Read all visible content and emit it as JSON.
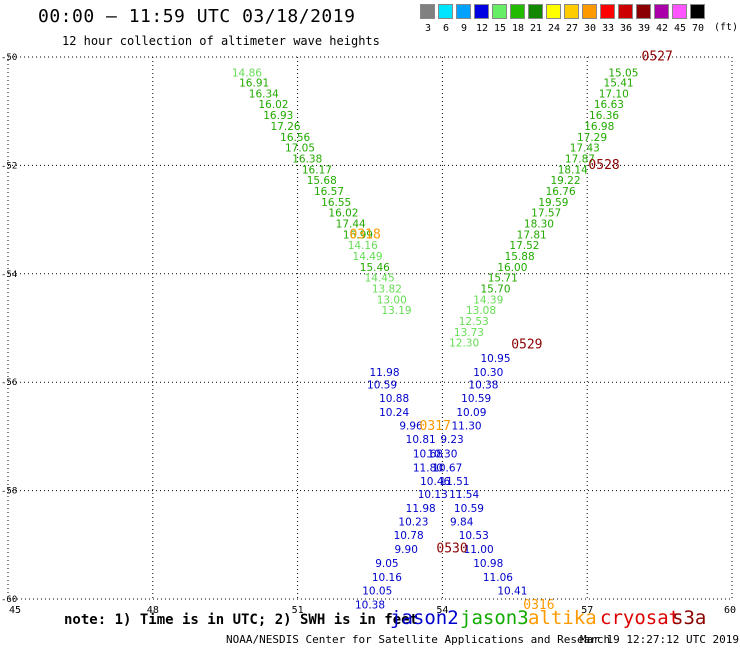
{
  "header": {
    "title": "00:00 – 11:59 UTC 03/18/2019",
    "subtitle": "12 hour collection of altimeter wave heights"
  },
  "color_scale": {
    "unit": "(ft)",
    "bins": [
      {
        "label": "3",
        "color": "#808080"
      },
      {
        "label": "6",
        "color": "#00e5ff"
      },
      {
        "label": "9",
        "color": "#00a2ff"
      },
      {
        "label": "12",
        "color": "#0000e0"
      },
      {
        "label": "15",
        "color": "#66ee66"
      },
      {
        "label": "18",
        "color": "#22bb00"
      },
      {
        "label": "21",
        "color": "#118800"
      },
      {
        "label": "24",
        "color": "#ffff00"
      },
      {
        "label": "27",
        "color": "#ffcc00"
      },
      {
        "label": "30",
        "color": "#ff9900"
      },
      {
        "label": "33",
        "color": "#ff0000"
      },
      {
        "label": "36",
        "color": "#cc0000"
      },
      {
        "label": "39",
        "color": "#8b0000"
      },
      {
        "label": "42",
        "color": "#aa00aa"
      },
      {
        "label": "45",
        "color": "#ff55ff"
      },
      {
        "label": "70",
        "color": "#000000"
      }
    ]
  },
  "chart_data": {
    "type": "scatter",
    "xlim": [
      45,
      60
    ],
    "ylim": [
      -60,
      -50
    ],
    "x_ticks": [
      "45",
      "48",
      "51",
      "54",
      "57",
      "60"
    ],
    "y_ticks": [
      "-50",
      "-52",
      "-54",
      "-56",
      "-58",
      "-60"
    ],
    "grid": true,
    "series": [
      {
        "name": "jason2",
        "color": "#0000cc",
        "points": [
          {
            "x": 52.8,
            "y": -55.83,
            "label": "11.98"
          },
          {
            "x": 52.75,
            "y": -56.06,
            "label": "10.59"
          },
          {
            "x": 53.0,
            "y": -56.31,
            "label": "10.88"
          },
          {
            "x": 53.0,
            "y": -56.57,
            "label": "10.24"
          },
          {
            "x": 53.35,
            "y": -56.82,
            "label": "9.96"
          },
          {
            "x": 53.55,
            "y": -57.07,
            "label": "10.81"
          },
          {
            "x": 53.7,
            "y": -57.33,
            "label": "10.68"
          },
          {
            "x": 53.7,
            "y": -57.59,
            "label": "11.80"
          },
          {
            "x": 53.85,
            "y": -57.84,
            "label": "10.46"
          },
          {
            "x": 53.8,
            "y": -58.08,
            "label": "10.13"
          },
          {
            "x": 53.55,
            "y": -58.34,
            "label": "11.98"
          },
          {
            "x": 53.4,
            "y": -58.59,
            "label": "10.23"
          },
          {
            "x": 53.3,
            "y": -58.84,
            "label": "10.78"
          },
          {
            "x": 53.25,
            "y": -59.1,
            "label": "9.90"
          },
          {
            "x": 52.85,
            "y": -59.35,
            "label": "9.05"
          },
          {
            "x": 52.85,
            "y": -59.61,
            "label": "10.16"
          },
          {
            "x": 52.65,
            "y": -59.86,
            "label": "10.05"
          },
          {
            "x": 52.5,
            "y": -60.12,
            "label": "10.38"
          },
          {
            "x": 55.45,
            "y": -59.86,
            "label": "10.41"
          },
          {
            "x": 55.15,
            "y": -59.61,
            "label": "11.06"
          },
          {
            "x": 54.95,
            "y": -59.35,
            "label": "10.98"
          },
          {
            "x": 54.75,
            "y": -59.1,
            "label": "11.00"
          },
          {
            "x": 54.65,
            "y": -58.84,
            "label": "10.53"
          },
          {
            "x": 54.4,
            "y": -58.59,
            "label": "9.84"
          },
          {
            "x": 54.55,
            "y": -58.34,
            "label": "10.59"
          },
          {
            "x": 54.45,
            "y": -58.08,
            "label": "11.54"
          },
          {
            "x": 54.25,
            "y": -57.84,
            "label": "11.51"
          },
          {
            "x": 54.1,
            "y": -57.59,
            "label": "10.67"
          },
          {
            "x": 54.0,
            "y": -57.33,
            "label": "10.30"
          },
          {
            "x": 54.2,
            "y": -57.07,
            "label": "9.23"
          },
          {
            "x": 54.5,
            "y": -56.82,
            "label": "11.30"
          },
          {
            "x": 54.6,
            "y": -56.57,
            "label": "10.09"
          },
          {
            "x": 54.7,
            "y": -56.31,
            "label": "10.59"
          },
          {
            "x": 54.85,
            "y": -56.06,
            "label": "10.38"
          },
          {
            "x": 54.95,
            "y": -55.83,
            "label": "10.30"
          },
          {
            "x": 55.1,
            "y": -55.57,
            "label": "10.95"
          }
        ]
      },
      {
        "name": "jason3",
        "color": "#11aa00",
        "points": [
          {
            "x": 49.95,
            "y": -50.3,
            "label": "14.86"
          },
          {
            "x": 50.1,
            "y": -50.49,
            "label": "16.91"
          },
          {
            "x": 50.3,
            "y": -50.69,
            "label": "16.34"
          },
          {
            "x": 50.5,
            "y": -50.89,
            "label": "16.02"
          },
          {
            "x": 50.6,
            "y": -51.09,
            "label": "16.93"
          },
          {
            "x": 50.75,
            "y": -51.29,
            "label": "17.26"
          },
          {
            "x": 50.95,
            "y": -51.49,
            "label": "16.56"
          },
          {
            "x": 51.05,
            "y": -51.69,
            "label": "17.05"
          },
          {
            "x": 51.2,
            "y": -51.89,
            "label": "16.38"
          },
          {
            "x": 51.4,
            "y": -52.09,
            "label": "16.17"
          },
          {
            "x": 51.5,
            "y": -52.29,
            "label": "15.68"
          },
          {
            "x": 51.65,
            "y": -52.49,
            "label": "16.57"
          },
          {
            "x": 51.8,
            "y": -52.69,
            "label": "16.55"
          },
          {
            "x": 51.95,
            "y": -52.89,
            "label": "16.02"
          },
          {
            "x": 52.1,
            "y": -53.09,
            "label": "17.44"
          },
          {
            "x": 52.25,
            "y": -53.29,
            "label": "16.99"
          },
          {
            "x": 52.35,
            "y": -53.49,
            "label": "14.16"
          },
          {
            "x": 52.45,
            "y": -53.69,
            "label": "14.49"
          },
          {
            "x": 52.6,
            "y": -53.89,
            "label": "15.46"
          },
          {
            "x": 52.7,
            "y": -54.09,
            "label": "14.45"
          },
          {
            "x": 52.85,
            "y": -54.29,
            "label": "13.82"
          },
          {
            "x": 52.95,
            "y": -54.49,
            "label": "13.00"
          },
          {
            "x": 53.05,
            "y": -54.69,
            "label": "13.19"
          },
          {
            "x": 57.75,
            "y": -50.3,
            "label": "15.05"
          },
          {
            "x": 57.65,
            "y": -50.49,
            "label": "15.41"
          },
          {
            "x": 57.55,
            "y": -50.69,
            "label": "17.10"
          },
          {
            "x": 57.45,
            "y": -50.89,
            "label": "16.63"
          },
          {
            "x": 57.35,
            "y": -51.09,
            "label": "16.36"
          },
          {
            "x": 57.25,
            "y": -51.29,
            "label": "16.98"
          },
          {
            "x": 57.1,
            "y": -51.49,
            "label": "17.29"
          },
          {
            "x": 56.95,
            "y": -51.69,
            "label": "17.43"
          },
          {
            "x": 56.85,
            "y": -51.89,
            "label": "17.87"
          },
          {
            "x": 56.7,
            "y": -52.09,
            "label": "18.14"
          },
          {
            "x": 56.55,
            "y": -52.29,
            "label": "19.22"
          },
          {
            "x": 56.45,
            "y": -52.49,
            "label": "16.76"
          },
          {
            "x": 56.3,
            "y": -52.69,
            "label": "19.59"
          },
          {
            "x": 56.15,
            "y": -52.89,
            "label": "17.57"
          },
          {
            "x": 56.0,
            "y": -53.09,
            "label": "18.30"
          },
          {
            "x": 55.85,
            "y": -53.29,
            "label": "17.81"
          },
          {
            "x": 55.7,
            "y": -53.49,
            "label": "17.52"
          },
          {
            "x": 55.6,
            "y": -53.69,
            "label": "15.88"
          },
          {
            "x": 55.45,
            "y": -53.89,
            "label": "16.00"
          },
          {
            "x": 55.25,
            "y": -54.09,
            "label": "15.71"
          },
          {
            "x": 55.1,
            "y": -54.29,
            "label": "15.70"
          },
          {
            "x": 54.95,
            "y": -54.49,
            "label": "14.39"
          },
          {
            "x": 54.8,
            "y": -54.69,
            "label": "13.08"
          },
          {
            "x": 54.65,
            "y": -54.89,
            "label": "12.53"
          },
          {
            "x": 54.55,
            "y": -55.09,
            "label": "13.73"
          },
          {
            "x": 54.45,
            "y": -55.29,
            "label": "12.30"
          }
        ]
      }
    ],
    "track_labels": [
      {
        "text": "0527",
        "x": 58.45,
        "y": -50.0,
        "color": "#8b0000"
      },
      {
        "text": "0528",
        "x": 57.35,
        "y": -52.0,
        "color": "#8b0000"
      },
      {
        "text": "0318",
        "x": 52.4,
        "y": -53.28,
        "color": "#ff9900"
      },
      {
        "text": "0529",
        "x": 55.75,
        "y": -55.31,
        "color": "#8b0000"
      },
      {
        "text": "0317",
        "x": 53.85,
        "y": -56.82,
        "color": "#ff9900"
      },
      {
        "text": "0530",
        "x": 54.2,
        "y": -59.08,
        "color": "#8b0000"
      },
      {
        "text": "0316",
        "x": 56.0,
        "y": -60.12,
        "color": "#ff9900"
      }
    ]
  },
  "footer": {
    "note": "note: 1) Time is in UTC; 2) SWH is in feet",
    "satellites": [
      {
        "name": "jason2",
        "color": "#0000cc"
      },
      {
        "name": "jason3",
        "color": "#11aa00"
      },
      {
        "name": "altika",
        "color": "#ff9900"
      },
      {
        "name": "cryosat",
        "color": "#dd0000"
      },
      {
        "name": "s3a",
        "color": "#8b0000"
      }
    ],
    "credit": "NOAA/NESDIS Center for Satellite Applications and Research",
    "timestamp": "Mar 19 12:27:12 UTC 2019"
  }
}
